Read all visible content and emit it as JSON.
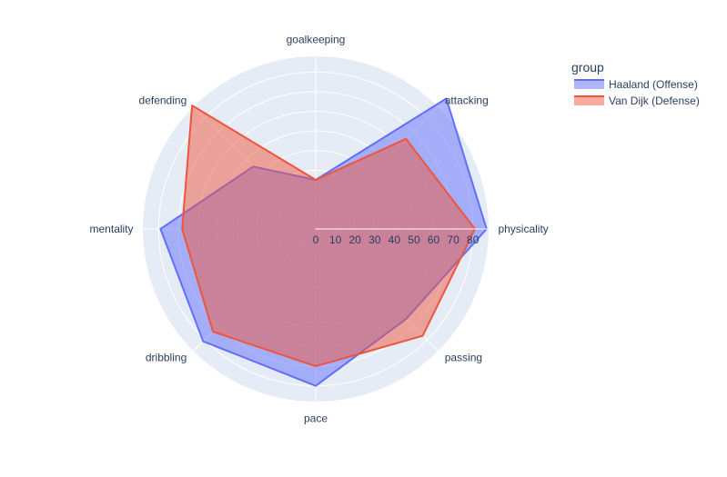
{
  "chart_data": {
    "type": "radar",
    "categories": [
      "physicality",
      "attacking",
      "goalkeeping",
      "defending",
      "mentality",
      "dribbling",
      "pace",
      "passing"
    ],
    "radial_ticks": [
      0,
      10,
      20,
      30,
      40,
      50,
      60,
      70,
      80
    ],
    "radial_range": [
      0,
      88
    ],
    "grid": true,
    "legend": {
      "title": "group",
      "placement": "top-right"
    },
    "series": [
      {
        "name": "Haaland (Offense)",
        "values": [
          87,
          94,
          25,
          45,
          79,
          81,
          80,
          65
        ],
        "line_color": "#636efa",
        "fill_color": "#636efa"
      },
      {
        "name": "Van Dijk (Defense)",
        "values": [
          81,
          65,
          25,
          89,
          68,
          74,
          70,
          77
        ],
        "line_color": "#ef553b",
        "fill_color": "#ef553b"
      }
    ]
  }
}
